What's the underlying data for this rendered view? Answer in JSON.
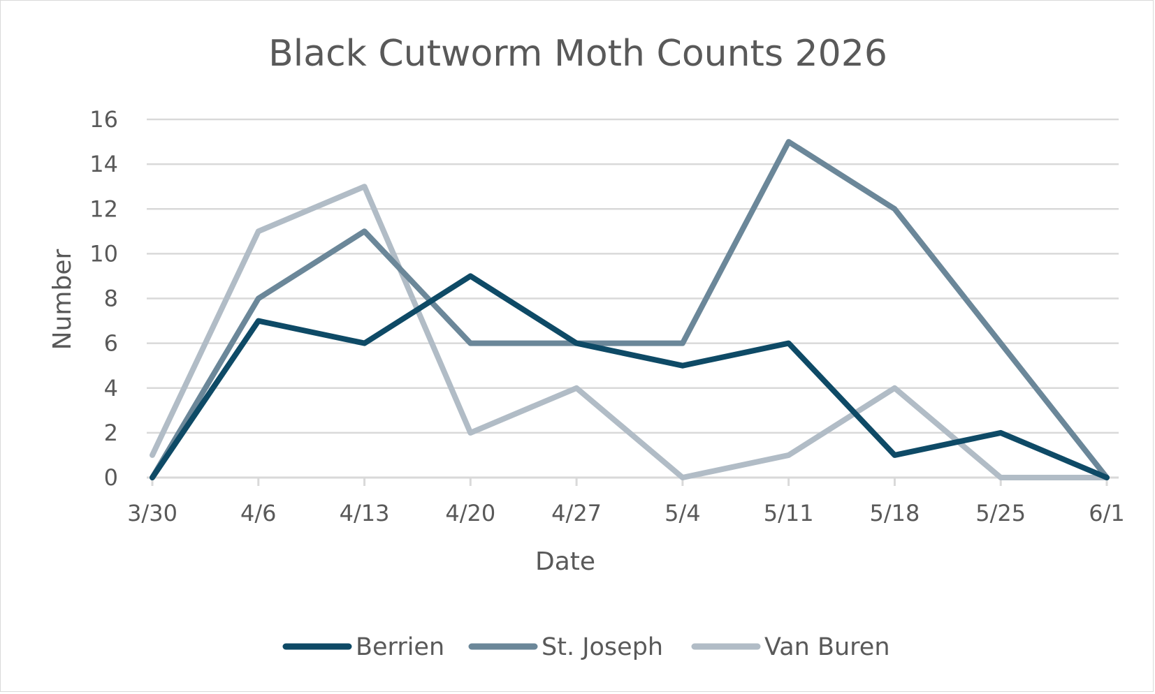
{
  "chart_data": {
    "type": "line",
    "title": "Black Cutworm Moth Counts 2026",
    "xlabel": "Date",
    "ylabel": "Number",
    "categories": [
      "3/30",
      "4/6",
      "4/13",
      "4/20",
      "4/27",
      "5/4",
      "5/11",
      "5/18",
      "5/25",
      "6/1"
    ],
    "ylim": [
      0,
      16
    ],
    "yticks": [
      0,
      2,
      4,
      6,
      8,
      10,
      12,
      14,
      16
    ],
    "grid": true,
    "legend_position": "bottom",
    "series": [
      {
        "name": "Berrien",
        "color": "#0e4a66",
        "values": [
          0,
          7,
          6,
          9,
          6,
          5,
          6,
          1,
          2,
          0
        ]
      },
      {
        "name": "St. Joseph",
        "color": "#6b8799",
        "values": [
          0,
          8,
          11,
          6,
          6,
          6,
          15,
          12,
          6,
          0
        ]
      },
      {
        "name": "Van Buren",
        "color": "#b1bcc6",
        "values": [
          1,
          11,
          13,
          2,
          4,
          0,
          1,
          4,
          0,
          0
        ]
      }
    ]
  }
}
